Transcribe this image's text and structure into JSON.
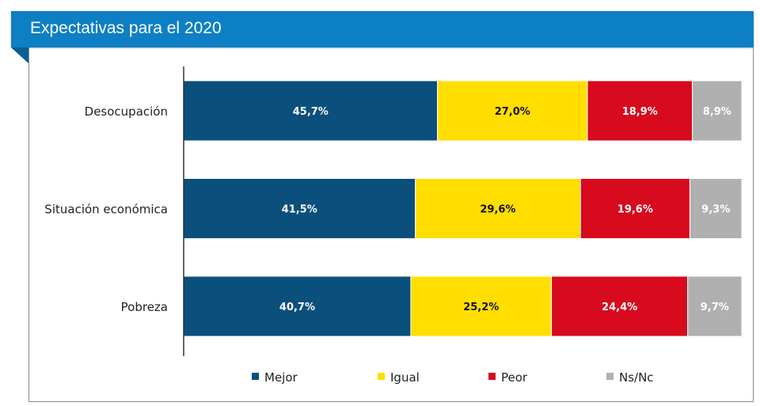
{
  "header": {
    "title": "Expectativas para el 2020"
  },
  "chart_data": {
    "type": "bar",
    "orientation": "horizontal",
    "stacked": true,
    "normalized": true,
    "title": "Expectativas para el 2020",
    "categories": [
      "Desocupación",
      "Situación económica",
      "Pobreza"
    ],
    "series": [
      {
        "name": "Mejor",
        "color": "#0b4f7c",
        "label_color": "#ffffff",
        "values": [
          45.7,
          41.5,
          40.7
        ],
        "labels": [
          "45,7%",
          "41,5%",
          "40,7%"
        ]
      },
      {
        "name": "Igual",
        "color": "#ffde00",
        "label_color": "#111111",
        "values": [
          27.0,
          29.6,
          25.2
        ],
        "labels": [
          "27,0%",
          "29,6%",
          "25,2%"
        ]
      },
      {
        "name": "Peor",
        "color": "#d70a1e",
        "label_color": "#ffffff",
        "values": [
          18.9,
          19.6,
          24.4
        ],
        "labels": [
          "18,9%",
          "19,6%",
          "24,4%"
        ]
      },
      {
        "name": "Ns/Nc",
        "color": "#b0b0b0",
        "label_color": "#ffffff",
        "values": [
          8.9,
          9.3,
          9.7
        ],
        "labels": [
          "8,9%",
          "9,3%",
          "9,7%"
        ]
      }
    ],
    "legend_position": "bottom",
    "grid": false
  }
}
